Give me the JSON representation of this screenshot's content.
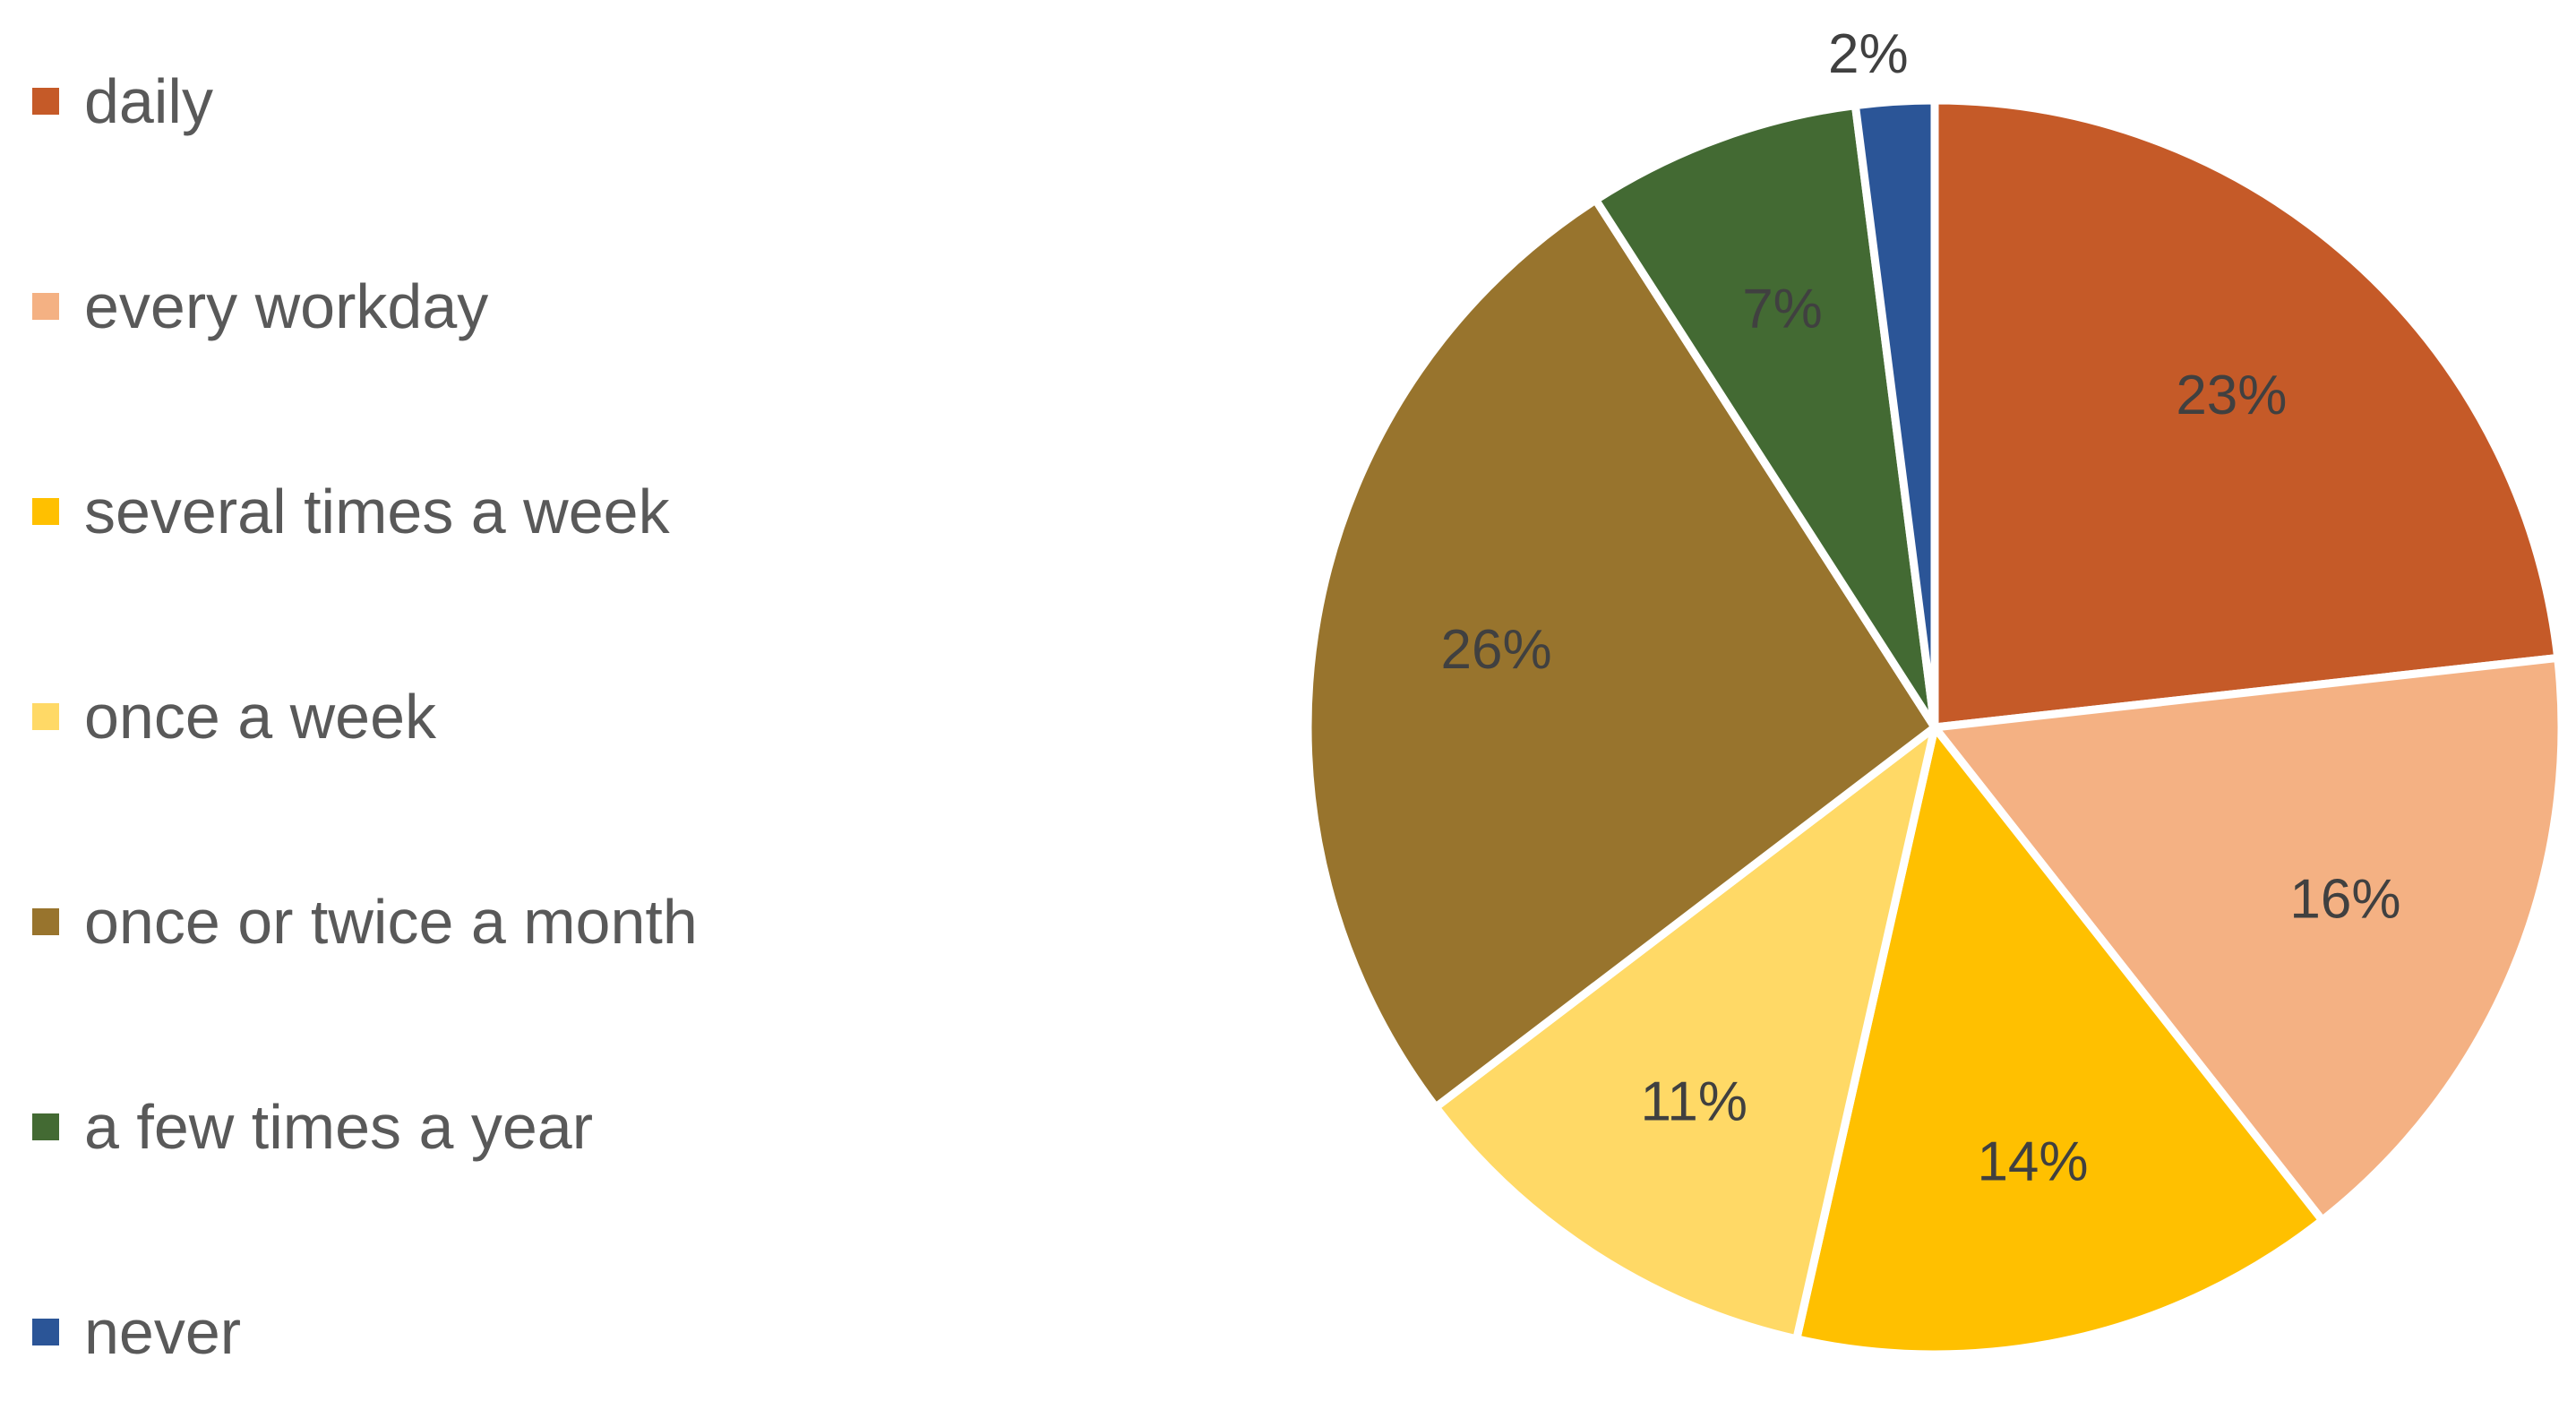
{
  "chart_data": {
    "type": "pie",
    "title": "",
    "categories": [
      "daily",
      "every workday",
      "several times a week",
      "once a week",
      "once or twice a month",
      "a few times a year",
      "never"
    ],
    "values": [
      23,
      16,
      14,
      11,
      26,
      7,
      2
    ],
    "labels": [
      "23%",
      "16%",
      "14%",
      "11%",
      "26%",
      "7%",
      "2%"
    ],
    "colors": [
      "#C55A28",
      "#F4B183",
      "#FFC000",
      "#FFD966",
      "#98742D",
      "#436A33",
      "#2B5597"
    ],
    "legend_position": "left",
    "start_angle_deg": 0,
    "direction": "clockwise"
  }
}
